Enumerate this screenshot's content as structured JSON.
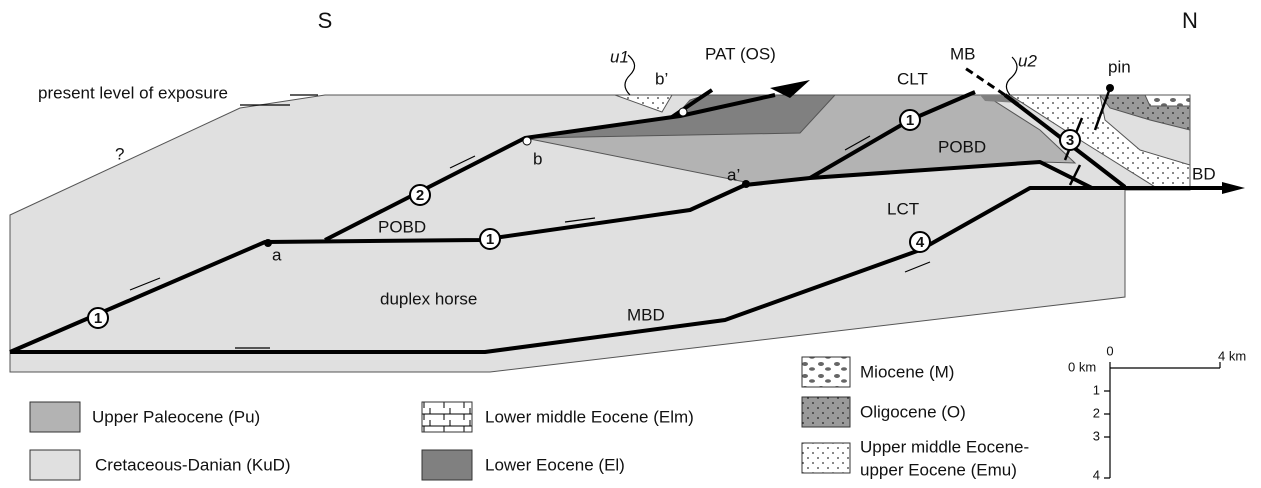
{
  "header": {
    "south": "S",
    "north": "N"
  },
  "labels": {
    "exposure": "present level of exposure",
    "question": "?",
    "u1": "u1",
    "pat": "PAT (OS)",
    "b_prime": "b’",
    "b": "b",
    "mb": "MB",
    "u2": "u2",
    "pin": "pin",
    "clt": "CLT",
    "pobd_upper": "POBD",
    "pobd_lower": "POBD",
    "a_prime": "a’",
    "a": "a",
    "bd": "BD",
    "lct": "LCT",
    "duplex": "duplex horse",
    "mbd": "MBD"
  },
  "sheet_numbers": [
    1,
    2,
    1,
    1,
    3,
    4
  ],
  "legend": {
    "pu": "Upper Paleocene (Pu)",
    "kud": "Cretaceous-Danian (KuD)",
    "elm": "Lower middle Eocene (Elm)",
    "el": "Lower Eocene (El)",
    "m": "Miocene (M)",
    "o": "Oligocene (O)",
    "emu": [
      "Upper middle Eocene-",
      "upper Eocene (Emu)"
    ]
  },
  "scale": {
    "top_labels": [
      0,
      "4 km"
    ],
    "depth_labels": [
      "0 km",
      1,
      2,
      3,
      4
    ]
  }
}
